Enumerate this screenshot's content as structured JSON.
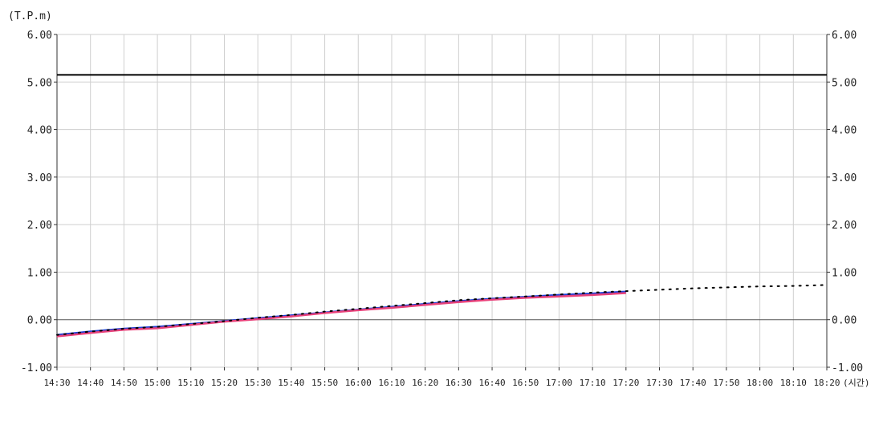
{
  "chart_data": {
    "type": "line",
    "ylabel": "(T.P.m)",
    "xunit": "(시간)",
    "ylim": [
      -1.0,
      6.0
    ],
    "y_ticks": [
      "6.00",
      "5.00",
      "4.00",
      "3.00",
      "2.00",
      "1.00",
      "0.00",
      "-1.00"
    ],
    "x": [
      "14:30",
      "14:40",
      "14:50",
      "15:00",
      "15:10",
      "15:20",
      "15:30",
      "15:40",
      "15:50",
      "16:00",
      "16:10",
      "16:20",
      "16:30",
      "16:40",
      "16:50",
      "17:00",
      "17:10",
      "17:20",
      "17:30",
      "17:40",
      "17:50",
      "18:00",
      "18:10",
      "18:20"
    ],
    "grid": true,
    "reference_line": {
      "value": 5.15,
      "color": "#000000"
    },
    "series": [
      {
        "color": "#1f3fd6",
        "style": "solid",
        "values": [
          -0.32,
          -0.25,
          -0.19,
          -0.15,
          -0.09,
          -0.03,
          0.03,
          0.09,
          0.15,
          0.21,
          0.27,
          0.33,
          0.39,
          0.44,
          0.48,
          0.52,
          0.55,
          0.59,
          null,
          null,
          null,
          null,
          null,
          null
        ]
      },
      {
        "color": "#e8427a",
        "style": "solid",
        "values": [
          -0.35,
          -0.28,
          -0.21,
          -0.18,
          -0.11,
          -0.04,
          0.01,
          0.07,
          0.14,
          0.2,
          0.25,
          0.31,
          0.37,
          0.42,
          0.46,
          0.49,
          0.52,
          0.56,
          null,
          null,
          null,
          null,
          null,
          null
        ]
      },
      {
        "color": "#000000",
        "style": "dotted",
        "values": [
          -0.32,
          -0.25,
          -0.19,
          -0.15,
          -0.09,
          -0.03,
          0.04,
          0.1,
          0.17,
          0.23,
          0.29,
          0.35,
          0.41,
          0.45,
          0.49,
          0.53,
          0.57,
          0.6,
          0.63,
          0.66,
          0.68,
          0.7,
          0.71,
          0.73
        ]
      }
    ]
  }
}
